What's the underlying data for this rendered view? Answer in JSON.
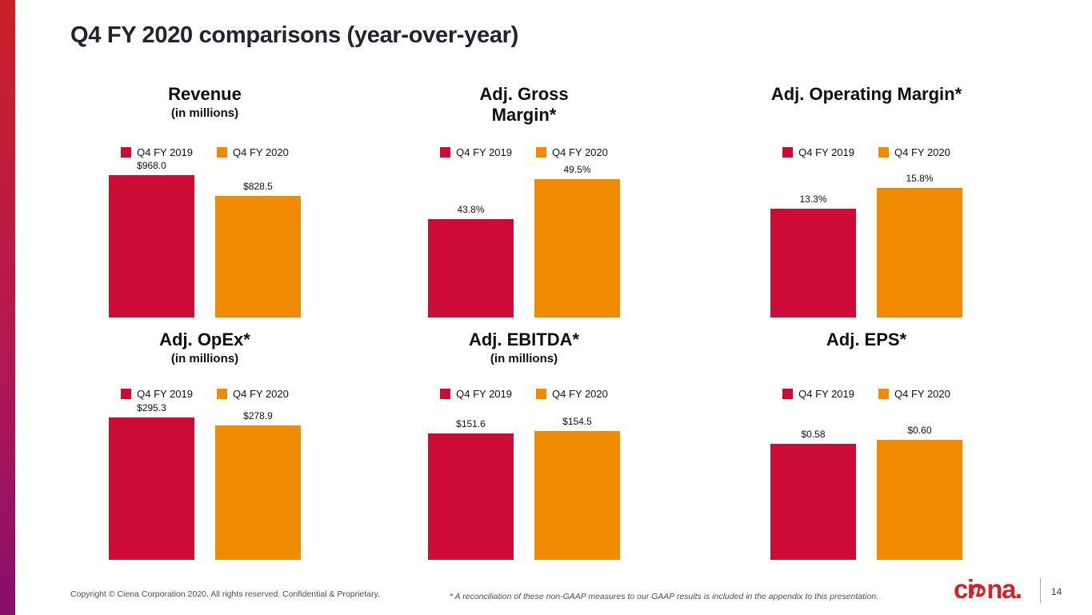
{
  "slide": {
    "title": "Q4 FY 2020 comparisons (year-over-year)",
    "colors": {
      "fy2019": "#CC0C35",
      "fy2020": "#F08A00",
      "accent_top": "#CA2127",
      "accent_mid": "#B41950",
      "accent_bottom": "#870F6C",
      "logo_red": "#D2232A"
    },
    "footer": {
      "copyright": "Copyright © Ciena Corporation 2020. All rights reserved. Confidential & Proprietary.",
      "footnote": "* A reconciliation of these non-GAAP measures to our GAAP results is included in the appendix to this presentation.",
      "logo": {
        "prefix": "ci",
        "stylized_e": "e",
        "suffix": "na",
        "trademark_dot": "."
      },
      "page_number": "14"
    }
  },
  "chart_data": [
    {
      "type": "bar",
      "title": "Revenue",
      "subtitle": "(in millions)",
      "categories": [
        "Q4 FY 2019",
        "Q4 FY 2020"
      ],
      "values": [
        968.0,
        828.5
      ],
      "labels": [
        "$968.0",
        "$828.5"
      ],
      "ylim": [
        0,
        1090
      ],
      "legend_position": "top",
      "grid": false
    },
    {
      "type": "bar",
      "title": "Adj. Gross\nMargin*",
      "subtitle": "",
      "categories": [
        "Q4 FY 2019",
        "Q4 FY 2020"
      ],
      "values": [
        43.8,
        49.5
      ],
      "labels": [
        "43.8%",
        "49.5%"
      ],
      "ylim": [
        30,
        52.5
      ],
      "legend_position": "top",
      "grid": false
    },
    {
      "type": "bar",
      "title": "Adj. Operating Margin*",
      "subtitle": "",
      "categories": [
        "Q4 FY 2019",
        "Q4 FY 2020"
      ],
      "values": [
        13.3,
        15.8
      ],
      "labels": [
        "13.3%",
        "15.8%"
      ],
      "ylim": [
        0,
        19.5
      ],
      "legend_position": "top",
      "grid": false
    },
    {
      "type": "bar",
      "title": "Adj. OpEx*",
      "subtitle": "(in millions)",
      "categories": [
        "Q4 FY 2019",
        "Q4 FY 2020"
      ],
      "values": [
        295.3,
        278.9
      ],
      "labels": [
        "$295.3",
        "$278.9"
      ],
      "ylim": [
        0,
        332
      ],
      "legend_position": "top",
      "grid": false
    },
    {
      "type": "bar",
      "title": "Adj. EBITDA*",
      "subtitle": "(in millions)",
      "categories": [
        "Q4 FY 2019",
        "Q4 FY 2020"
      ],
      "values": [
        151.6,
        154.5
      ],
      "labels": [
        "$151.6",
        "$154.5"
      ],
      "ylim": [
        0,
        192
      ],
      "legend_position": "top",
      "grid": false
    },
    {
      "type": "bar",
      "title": "Adj. EPS*",
      "subtitle": "",
      "categories": [
        "Q4 FY 2019",
        "Q4 FY 2020"
      ],
      "values": [
        0.58,
        0.6
      ],
      "labels": [
        "$0.58",
        "$0.60"
      ],
      "ylim": [
        0,
        0.8
      ],
      "legend_position": "top",
      "grid": false
    }
  ]
}
